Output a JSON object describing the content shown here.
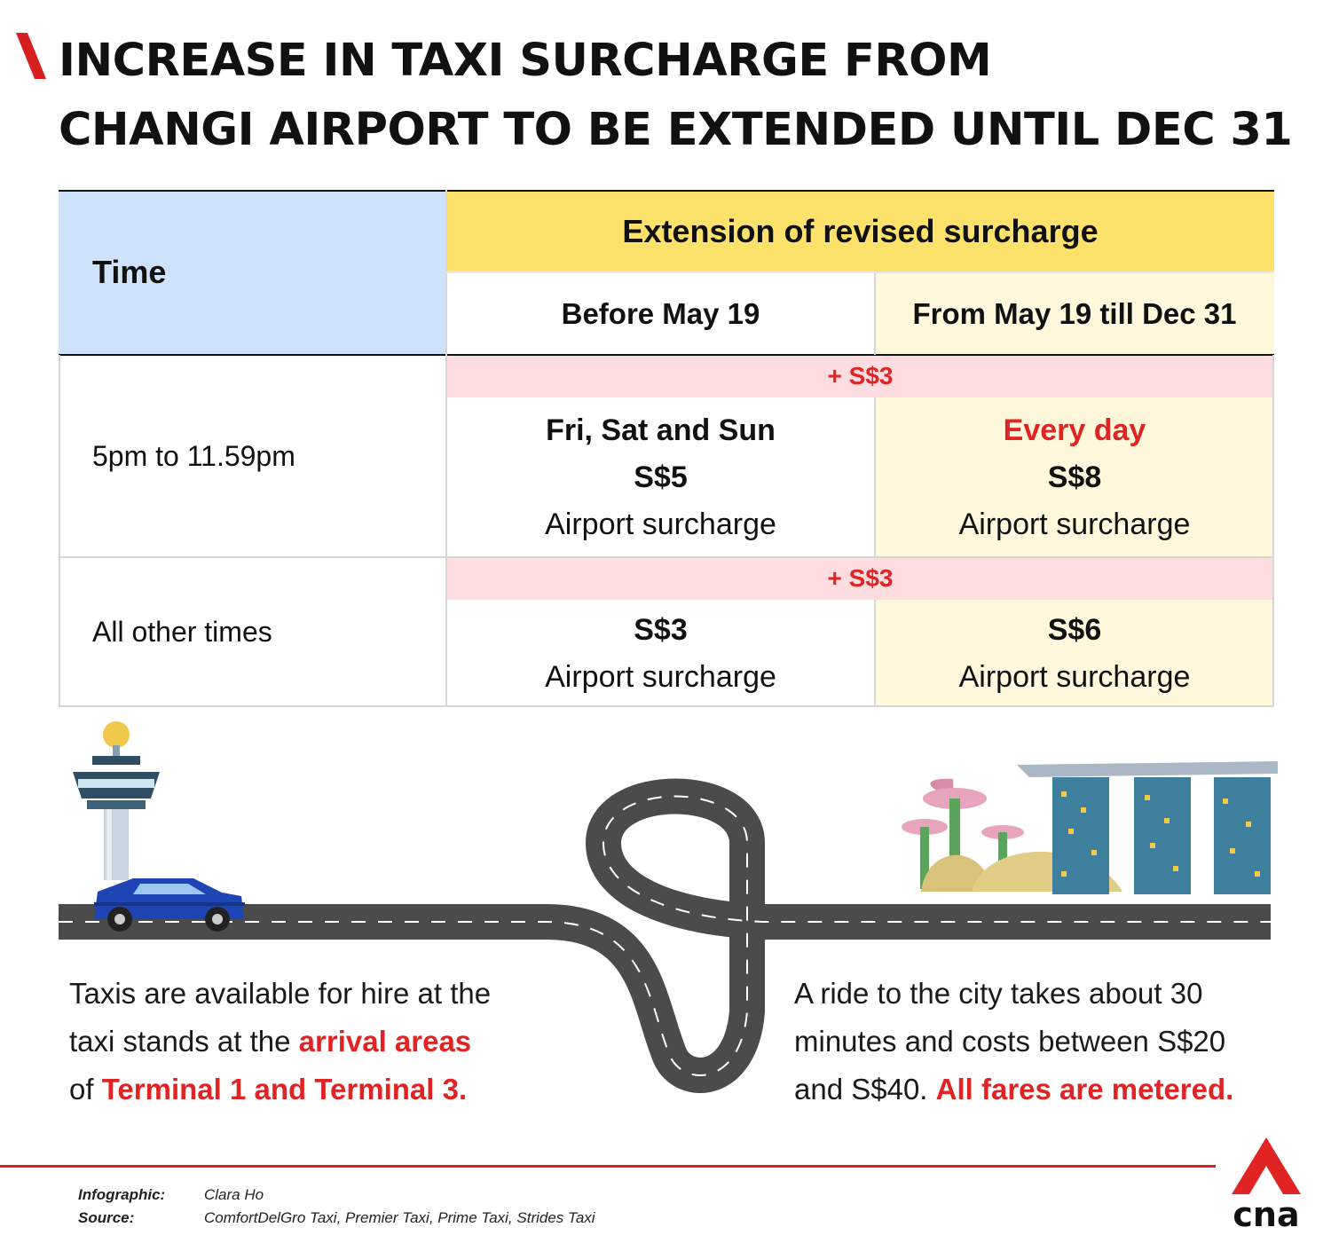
{
  "title": {
    "line1": "INCREASE IN TAXI SURCHARGE FROM",
    "line2": "CHANGI AIRPORT TO BE EXTENDED UNTIL DEC 31"
  },
  "table": {
    "time_header": "Time",
    "group_header": "Extension of revised surcharge",
    "col_before": "Before May 19",
    "col_after": "From May 19 till Dec 31",
    "rows": [
      {
        "time": "5pm to 11.59pm",
        "increase": "+ S$3",
        "before": {
          "days": "Fri, Sat and Sun",
          "amount": "S$5",
          "label": "Airport surcharge"
        },
        "after": {
          "days": "Every day",
          "amount": "S$8",
          "label": "Airport surcharge"
        }
      },
      {
        "time": "All other times",
        "increase": "+ S$3",
        "before": {
          "amount": "S$3",
          "label": "Airport surcharge"
        },
        "after": {
          "amount": "S$6",
          "label": "Airport surcharge"
        }
      }
    ]
  },
  "left_text": {
    "line1": "Taxis are available for hire at the",
    "line2_a": "taxi stands at the ",
    "line2_b": "arrival areas",
    "line3_a": "of ",
    "line3_b": "Terminal 1 and Terminal 3."
  },
  "right_text": {
    "line1": "A ride to the city takes about 30",
    "line2": "minutes and costs between S$20",
    "line3_a": "and S$40. ",
    "line3_b": "All fares are metered."
  },
  "credits": {
    "infographic_label": "Infographic:",
    "infographic_value": "Clara Ho",
    "source_label": "Source:",
    "source_value": "ComfortDelGro Taxi, Premier Taxi, Prime Taxi, Strides Taxi"
  },
  "logo_text": "cna",
  "colors": {
    "accent_red": "#e02424",
    "time_header_bg": "#cfe2fb",
    "group_header_bg": "#fde16a",
    "after_col_bg": "#fff8dc",
    "increase_bg": "#fddde0"
  }
}
